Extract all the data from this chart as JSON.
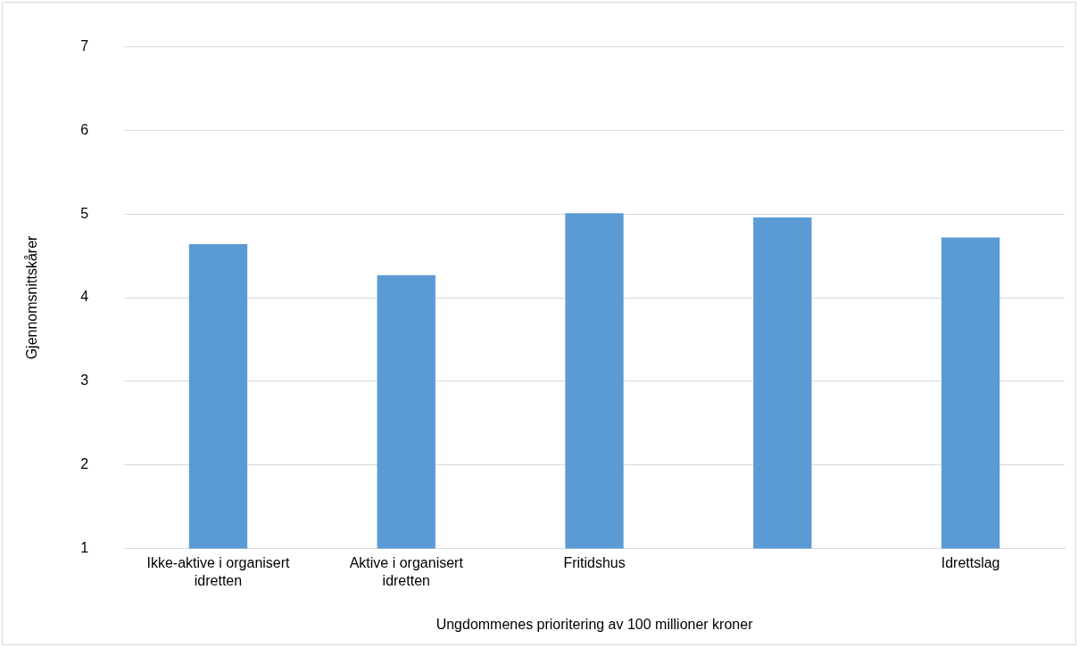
{
  "chart_data": {
    "type": "bar",
    "xlabel": "Ungdommenes prioritering av 100 millioner kroner",
    "ylabel": "Gjennomsnittskårer",
    "categories": [
      "Ikke-aktive i organisert idretten",
      "Aktive i organisert idretten",
      "Fritidshus",
      null,
      "Idrettslag"
    ],
    "values": [
      4.64,
      4.27,
      5.01,
      4.96,
      4.72
    ],
    "color": "#5b9bd5",
    "ylim": [
      1,
      7
    ],
    "yticks": [
      1,
      2,
      3,
      4,
      5,
      6,
      7
    ],
    "grid": "y",
    "legend": false
  }
}
